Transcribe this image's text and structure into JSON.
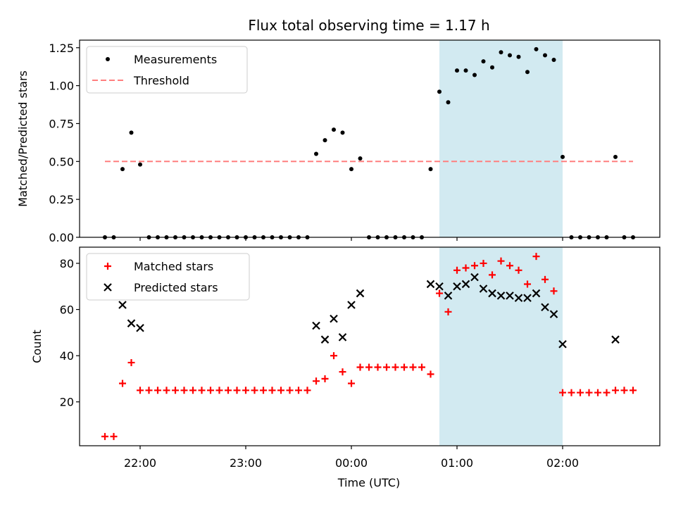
{
  "chart_data": {
    "title": "Flux total observing time = 1.17 h",
    "xlabel": "Time (UTC)",
    "x_ticks": [
      "22:00",
      "23:00",
      "00:00",
      "01:00",
      "02:00"
    ],
    "highlight_window": {
      "start": "00:50",
      "end": "02:00",
      "color": "#add8e6"
    },
    "panels": [
      {
        "type": "scatter",
        "ylabel": "Matched/Predicted stars",
        "ylim": [
          0,
          1.3
        ],
        "y_ticks": [
          "0.00",
          "0.25",
          "0.50",
          "0.75",
          "1.00",
          "1.25"
        ],
        "legend": {
          "location": "upper-left",
          "entries": [
            "Measurements",
            "Threshold"
          ]
        },
        "threshold": {
          "name": "Threshold",
          "value": 0.5,
          "x_start": "21:40",
          "x_end": "02:40",
          "color": "#ff7f7f",
          "style": "dashed"
        },
        "series": [
          {
            "name": "Measurements",
            "marker": "dot",
            "color": "#000000",
            "points": [
              [
                "21:40",
                0
              ],
              [
                "21:45",
                0
              ],
              [
                "21:50",
                0.45
              ],
              [
                "21:55",
                0.69
              ],
              [
                "22:00",
                0.48
              ],
              [
                "22:05",
                0
              ],
              [
                "22:10",
                0
              ],
              [
                "22:15",
                0
              ],
              [
                "22:20",
                0
              ],
              [
                "22:25",
                0
              ],
              [
                "22:30",
                0
              ],
              [
                "22:35",
                0
              ],
              [
                "22:40",
                0
              ],
              [
                "22:45",
                0
              ],
              [
                "22:50",
                0
              ],
              [
                "22:55",
                0
              ],
              [
                "23:00",
                0
              ],
              [
                "23:05",
                0
              ],
              [
                "23:10",
                0
              ],
              [
                "23:15",
                0
              ],
              [
                "23:20",
                0
              ],
              [
                "23:25",
                0
              ],
              [
                "23:30",
                0
              ],
              [
                "23:35",
                0
              ],
              [
                "23:40",
                0.55
              ],
              [
                "23:45",
                0.64
              ],
              [
                "23:50",
                0.71
              ],
              [
                "23:55",
                0.69
              ],
              [
                "00:00",
                0.45
              ],
              [
                "00:05",
                0.52
              ],
              [
                "00:10",
                0
              ],
              [
                "00:15",
                0
              ],
              [
                "00:20",
                0
              ],
              [
                "00:25",
                0
              ],
              [
                "00:30",
                0
              ],
              [
                "00:35",
                0
              ],
              [
                "00:40",
                0
              ],
              [
                "00:45",
                0.45
              ],
              [
                "00:50",
                0.96
              ],
              [
                "00:55",
                0.89
              ],
              [
                "01:00",
                1.1
              ],
              [
                "01:05",
                1.1
              ],
              [
                "01:10",
                1.07
              ],
              [
                "01:15",
                1.16
              ],
              [
                "01:20",
                1.12
              ],
              [
                "01:25",
                1.22
              ],
              [
                "01:30",
                1.2
              ],
              [
                "01:35",
                1.19
              ],
              [
                "01:40",
                1.09
              ],
              [
                "01:45",
                1.24
              ],
              [
                "01:50",
                1.2
              ],
              [
                "01:55",
                1.17
              ],
              [
                "02:00",
                0.53
              ],
              [
                "02:05",
                0
              ],
              [
                "02:10",
                0
              ],
              [
                "02:15",
                0
              ],
              [
                "02:20",
                0
              ],
              [
                "02:25",
                0
              ],
              [
                "02:30",
                0.53
              ],
              [
                "02:35",
                0
              ],
              [
                "02:40",
                0
              ]
            ]
          }
        ]
      },
      {
        "type": "scatter",
        "ylabel": "Count",
        "ylim": [
          1,
          87
        ],
        "y_ticks": [
          "20",
          "40",
          "60",
          "80"
        ],
        "legend": {
          "location": "upper-left",
          "entries": [
            "Matched stars",
            "Predicted stars"
          ]
        },
        "series": [
          {
            "name": "Matched stars",
            "marker": "plus",
            "color": "#ff0000",
            "points": [
              [
                "21:40",
                5
              ],
              [
                "21:45",
                5
              ],
              [
                "21:50",
                28
              ],
              [
                "21:55",
                37
              ],
              [
                "22:00",
                25
              ],
              [
                "22:05",
                25
              ],
              [
                "22:10",
                25
              ],
              [
                "22:15",
                25
              ],
              [
                "22:20",
                25
              ],
              [
                "22:25",
                25
              ],
              [
                "22:30",
                25
              ],
              [
                "22:35",
                25
              ],
              [
                "22:40",
                25
              ],
              [
                "22:45",
                25
              ],
              [
                "22:50",
                25
              ],
              [
                "22:55",
                25
              ],
              [
                "23:00",
                25
              ],
              [
                "23:05",
                25
              ],
              [
                "23:10",
                25
              ],
              [
                "23:15",
                25
              ],
              [
                "23:20",
                25
              ],
              [
                "23:25",
                25
              ],
              [
                "23:30",
                25
              ],
              [
                "23:35",
                25
              ],
              [
                "23:40",
                29
              ],
              [
                "23:45",
                30
              ],
              [
                "23:50",
                40
              ],
              [
                "23:55",
                33
              ],
              [
                "00:00",
                28
              ],
              [
                "00:05",
                35
              ],
              [
                "00:10",
                35
              ],
              [
                "00:15",
                35
              ],
              [
                "00:20",
                35
              ],
              [
                "00:25",
                35
              ],
              [
                "00:30",
                35
              ],
              [
                "00:35",
                35
              ],
              [
                "00:40",
                35
              ],
              [
                "00:45",
                32
              ],
              [
                "00:50",
                67
              ],
              [
                "00:55",
                59
              ],
              [
                "01:00",
                77
              ],
              [
                "01:05",
                78
              ],
              [
                "01:10",
                79
              ],
              [
                "01:15",
                80
              ],
              [
                "01:20",
                75
              ],
              [
                "01:25",
                81
              ],
              [
                "01:30",
                79
              ],
              [
                "01:35",
                77
              ],
              [
                "01:40",
                71
              ],
              [
                "01:45",
                83
              ],
              [
                "01:50",
                73
              ],
              [
                "01:55",
                68
              ],
              [
                "02:00",
                24
              ],
              [
                "02:05",
                24
              ],
              [
                "02:10",
                24
              ],
              [
                "02:15",
                24
              ],
              [
                "02:20",
                24
              ],
              [
                "02:25",
                24
              ],
              [
                "02:30",
                25
              ],
              [
                "02:35",
                25
              ],
              [
                "02:40",
                25
              ]
            ]
          },
          {
            "name": "Predicted stars",
            "marker": "x",
            "color": "#000000",
            "points": [
              [
                "21:50",
                62
              ],
              [
                "21:55",
                54
              ],
              [
                "22:00",
                52
              ],
              [
                "23:40",
                53
              ],
              [
                "23:45",
                47
              ],
              [
                "23:50",
                56
              ],
              [
                "23:55",
                48
              ],
              [
                "00:00",
                62
              ],
              [
                "00:05",
                67
              ],
              [
                "00:45",
                71
              ],
              [
                "00:50",
                70
              ],
              [
                "00:55",
                66
              ],
              [
                "01:00",
                70
              ],
              [
                "01:05",
                71
              ],
              [
                "01:10",
                74
              ],
              [
                "01:15",
                69
              ],
              [
                "01:20",
                67
              ],
              [
                "01:25",
                66
              ],
              [
                "01:30",
                66
              ],
              [
                "01:35",
                65
              ],
              [
                "01:40",
                65
              ],
              [
                "01:45",
                67
              ],
              [
                "01:50",
                61
              ],
              [
                "01:55",
                58
              ],
              [
                "02:00",
                45
              ],
              [
                "02:30",
                47
              ]
            ]
          }
        ]
      }
    ]
  }
}
